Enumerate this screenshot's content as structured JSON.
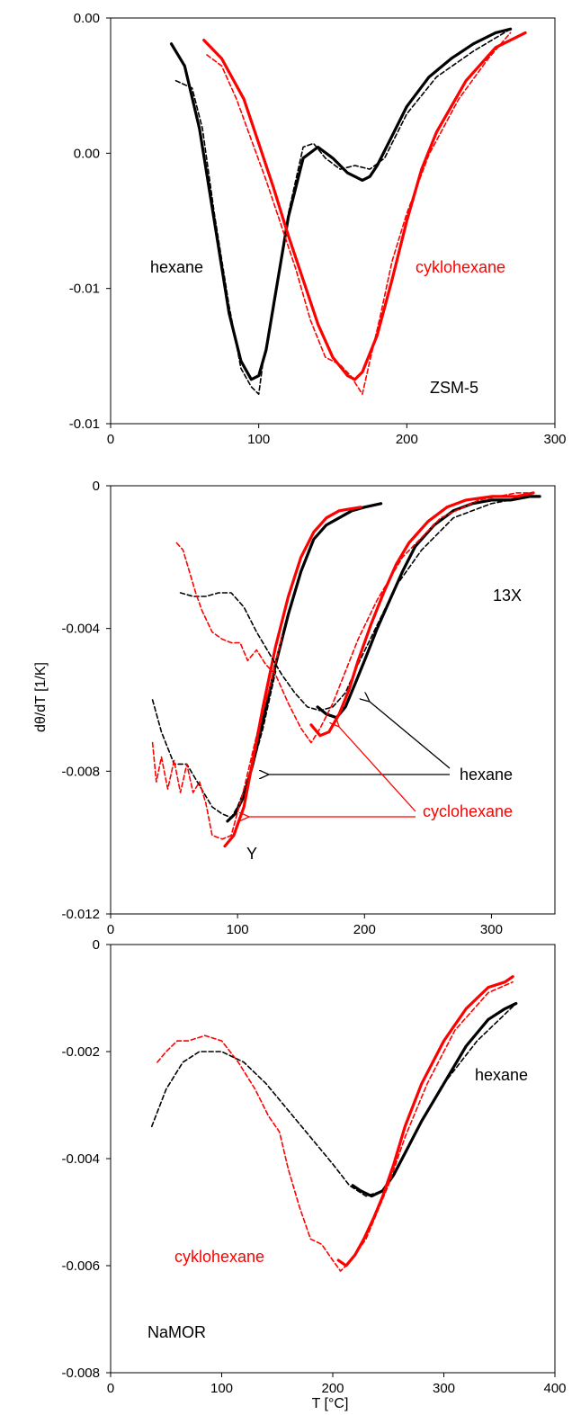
{
  "figure": {
    "ylabel": "dθ/dT [1/K]",
    "xlabel": "T [°C]"
  },
  "chart_data": [
    {
      "type": "line",
      "xlim": [
        0,
        300
      ],
      "x_ticks": [
        "0",
        "100",
        "200",
        "300"
      ],
      "y_ticks": [
        "0.00",
        "0.00",
        "-0.01",
        "-0.01"
      ],
      "ylim": [
        -0.0105,
        0.0005
      ],
      "annotations": [
        {
          "text": "hexane",
          "color": "#000000"
        },
        {
          "text": "cyklohexane",
          "color": "#ff0000"
        },
        {
          "text": "ZSM-5",
          "color": "#000000"
        }
      ],
      "series": [
        {
          "color": "#000000",
          "style": "solid",
          "x": [
            41,
            50,
            60,
            70,
            80,
            88,
            95,
            100,
            105,
            110,
            120,
            130,
            140,
            150,
            160,
            170,
            175,
            180,
            190,
            200,
            215,
            230,
            245,
            260,
            270
          ],
          "y": [
            -0.0002,
            -0.0008,
            -0.0025,
            -0.005,
            -0.0075,
            -0.0088,
            -0.0093,
            -0.0092,
            -0.0085,
            -0.0073,
            -0.0049,
            -0.0033,
            -0.003,
            -0.0033,
            -0.0037,
            -0.0039,
            -0.0038,
            -0.0035,
            -0.0027,
            -0.0019,
            -0.0011,
            -0.0006,
            -0.0002,
            0.0001,
            0.0002
          ]
        },
        {
          "color": "#000000",
          "style": "dashed",
          "x": [
            44,
            55,
            62,
            70,
            80,
            88,
            95,
            100,
            103,
            110,
            120,
            130,
            137,
            145,
            155,
            165,
            175,
            185,
            200,
            220,
            245,
            270
          ],
          "y": [
            -0.0012,
            -0.0014,
            -0.0025,
            -0.0048,
            -0.0073,
            -0.009,
            -0.0095,
            -0.0097,
            -0.0088,
            -0.0074,
            -0.0048,
            -0.003,
            -0.0029,
            -0.0033,
            -0.0036,
            -0.0035,
            -0.0036,
            -0.0033,
            -0.0021,
            -0.0011,
            -0.0004,
            0.0002
          ]
        },
        {
          "color": "#ff0000",
          "style": "solid",
          "x": [
            63,
            75,
            90,
            100,
            110,
            120,
            130,
            140,
            150,
            160,
            165,
            170,
            180,
            190,
            200,
            210,
            220,
            240,
            260,
            280
          ],
          "y": [
            -0.0001,
            -0.0006,
            -0.0017,
            -0.0029,
            -0.0041,
            -0.0054,
            -0.0066,
            -0.0078,
            -0.0087,
            -0.0092,
            -0.0093,
            -0.0091,
            -0.0081,
            -0.0066,
            -0.005,
            -0.0036,
            -0.0026,
            -0.0012,
            -0.0003,
            0.0001
          ]
        },
        {
          "color": "#ff0000",
          "style": "dashed",
          "x": [
            65,
            75,
            85,
            95,
            105,
            115,
            125,
            135,
            145,
            155,
            162,
            170,
            175,
            182,
            190,
            200,
            215,
            235,
            255,
            270
          ],
          "y": [
            -0.0005,
            -0.0008,
            -0.0017,
            -0.0028,
            -0.0039,
            -0.0051,
            -0.0063,
            -0.0077,
            -0.0087,
            -0.0089,
            -0.0092,
            -0.0097,
            -0.0088,
            -0.0076,
            -0.0061,
            -0.0048,
            -0.0032,
            -0.0017,
            -0.0006,
            0.0001
          ]
        }
      ]
    },
    {
      "type": "line",
      "xlim": [
        0,
        350
      ],
      "x_ticks": [
        "0",
        "100",
        "200",
        "300"
      ],
      "y_ticks": [
        "0",
        "-0.004",
        "-0.008",
        "-0.012"
      ],
      "ylim": [
        -0.012,
        0
      ],
      "annotations": [
        {
          "text": "13X",
          "color": "#000000"
        },
        {
          "text": "hexane",
          "color": "#000000"
        },
        {
          "text": "cyclohexane",
          "color": "#ff0000"
        },
        {
          "text": "Y",
          "color": "#000000"
        }
      ],
      "series": [
        {
          "color": "#000000",
          "style": "solid",
          "x": [
            92,
            98,
            105,
            112,
            120,
            130,
            140,
            150,
            160,
            170,
            180,
            190,
            200,
            213
          ],
          "y": [
            -0.0094,
            -0.0092,
            -0.0087,
            -0.0078,
            -0.0066,
            -0.005,
            -0.0036,
            -0.0024,
            -0.0015,
            -0.0011,
            -0.0009,
            -0.0007,
            -0.0006,
            -0.0005
          ]
        },
        {
          "color": "#000000",
          "style": "dashed",
          "x": [
            33,
            40,
            50,
            60,
            70,
            80,
            88,
            95,
            100,
            110,
            120,
            130
          ],
          "y": [
            -0.006,
            -0.0069,
            -0.0078,
            -0.0078,
            -0.0084,
            -0.009,
            -0.0092,
            -0.0093,
            -0.009,
            -0.0081,
            -0.0068,
            -0.0052
          ]
        },
        {
          "color": "#ff0000",
          "style": "solid",
          "x": [
            90,
            97,
            105,
            112,
            120,
            130,
            140,
            150,
            160,
            170,
            180,
            197
          ],
          "y": [
            -0.0101,
            -0.0098,
            -0.009,
            -0.0077,
            -0.0062,
            -0.0045,
            -0.0031,
            -0.002,
            -0.0013,
            -0.0009,
            -0.0007,
            -0.0006
          ]
        },
        {
          "color": "#ff0000",
          "style": "dashed",
          "x": [
            33,
            36,
            40,
            45,
            50,
            55,
            60,
            65,
            70,
            75,
            80,
            88,
            95,
            105,
            115,
            125,
            135
          ],
          "y": [
            -0.0072,
            -0.0083,
            -0.0076,
            -0.0085,
            -0.0077,
            -0.0086,
            -0.0078,
            -0.0086,
            -0.0083,
            -0.0089,
            -0.0098,
            -0.0099,
            -0.0098,
            -0.0085,
            -0.007,
            -0.0057,
            -0.0042
          ]
        },
        {
          "color": "#000000",
          "style": "solid",
          "x": [
            163,
            170,
            178,
            185,
            192,
            200,
            210,
            220,
            230,
            240,
            255,
            270,
            285,
            300,
            315,
            330,
            338
          ],
          "y": [
            -0.0062,
            -0.0064,
            -0.0065,
            -0.0062,
            -0.0056,
            -0.0049,
            -0.004,
            -0.0032,
            -0.0024,
            -0.0017,
            -0.0011,
            -0.0007,
            -0.0005,
            -0.0004,
            -0.0004,
            -0.0003,
            -0.0003
          ]
        },
        {
          "color": "#000000",
          "style": "dashed",
          "x": [
            55,
            65,
            75,
            85,
            95,
            105,
            115,
            125,
            135,
            145,
            155,
            165,
            175,
            185,
            195,
            210,
            225,
            245,
            270,
            300,
            330,
            338
          ],
          "y": [
            -0.003,
            -0.0031,
            -0.0031,
            -0.003,
            -0.003,
            -0.0034,
            -0.0041,
            -0.0047,
            -0.0053,
            -0.0058,
            -0.0062,
            -0.0063,
            -0.0062,
            -0.0058,
            -0.005,
            -0.0039,
            -0.0028,
            -0.0018,
            -0.0009,
            -0.0005,
            -0.0003,
            -0.0003
          ]
        },
        {
          "color": "#ff0000",
          "style": "solid",
          "x": [
            158,
            165,
            172,
            180,
            188,
            195,
            205,
            215,
            225,
            235,
            250,
            265,
            280,
            300,
            320,
            333
          ],
          "y": [
            -0.0067,
            -0.007,
            -0.0069,
            -0.0064,
            -0.0057,
            -0.0049,
            -0.0039,
            -0.003,
            -0.0022,
            -0.0016,
            -0.001,
            -0.0006,
            -0.0004,
            -0.0003,
            -0.0003,
            -0.0002
          ]
        },
        {
          "color": "#ff0000",
          "style": "dashed",
          "x": [
            52,
            57,
            62,
            67,
            72,
            80,
            88,
            95,
            102,
            108,
            115,
            122,
            130,
            140,
            150,
            158,
            165,
            175,
            185,
            195,
            210,
            230,
            260,
            290,
            320,
            333
          ],
          "y": [
            -0.0016,
            -0.0018,
            -0.0024,
            -0.003,
            -0.0035,
            -0.0041,
            -0.0043,
            -0.0044,
            -0.0044,
            -0.0049,
            -0.0046,
            -0.005,
            -0.0053,
            -0.0061,
            -0.0068,
            -0.0072,
            -0.0068,
            -0.0061,
            -0.0052,
            -0.0043,
            -0.0032,
            -0.002,
            -0.0009,
            -0.0004,
            -0.0002,
            -0.0002
          ]
        }
      ]
    },
    {
      "type": "line",
      "xlim": [
        0,
        400
      ],
      "x_ticks": [
        "0",
        "100",
        "200",
        "300",
        "400"
      ],
      "y_ticks": [
        "0",
        "-0.002",
        "-0.004",
        "-0.006",
        "-0.008"
      ],
      "ylim": [
        -0.008,
        0
      ],
      "annotations": [
        {
          "text": "hexane",
          "color": "#000000"
        },
        {
          "text": "cyklohexane",
          "color": "#ff0000"
        },
        {
          "text": "NaMOR",
          "color": "#000000"
        }
      ],
      "series": [
        {
          "color": "#000000",
          "style": "solid",
          "x": [
            218,
            225,
            235,
            245,
            255,
            265,
            280,
            300,
            320,
            340,
            355,
            365
          ],
          "y": [
            -0.0045,
            -0.0046,
            -0.0047,
            -0.0046,
            -0.0043,
            -0.0039,
            -0.0033,
            -0.0026,
            -0.0019,
            -0.0014,
            -0.0012,
            -0.0011
          ]
        },
        {
          "color": "#000000",
          "style": "dashed",
          "x": [
            37,
            50,
            65,
            80,
            100,
            120,
            140,
            160,
            180,
            200,
            215,
            230,
            245,
            260,
            280,
            300,
            330,
            365
          ],
          "y": [
            -0.0034,
            -0.0027,
            -0.0022,
            -0.002,
            -0.002,
            -0.0022,
            -0.0026,
            -0.0031,
            -0.0036,
            -0.0041,
            -0.0045,
            -0.0047,
            -0.0046,
            -0.0041,
            -0.0033,
            -0.0026,
            -0.0018,
            -0.0011
          ]
        },
        {
          "color": "#ff0000",
          "style": "solid",
          "x": [
            205,
            212,
            220,
            228,
            237,
            245,
            255,
            265,
            280,
            300,
            320,
            340,
            355,
            362
          ],
          "y": [
            -0.0059,
            -0.006,
            -0.0058,
            -0.0055,
            -0.0051,
            -0.0047,
            -0.0041,
            -0.0034,
            -0.0026,
            -0.0018,
            -0.0012,
            -0.0008,
            -0.0007,
            -0.0006
          ]
        },
        {
          "color": "#ff0000",
          "style": "dashed",
          "x": [
            42,
            50,
            60,
            70,
            85,
            100,
            115,
            130,
            142,
            152,
            160,
            170,
            180,
            190,
            200,
            207,
            212,
            220,
            230,
            240,
            250,
            265,
            285,
            310,
            340,
            362
          ],
          "y": [
            -0.0022,
            -0.002,
            -0.0018,
            -0.0018,
            -0.0017,
            -0.0018,
            -0.0022,
            -0.0027,
            -0.0032,
            -0.0035,
            -0.0042,
            -0.0049,
            -0.0055,
            -0.0056,
            -0.0059,
            -0.0061,
            -0.006,
            -0.0058,
            -0.0055,
            -0.005,
            -0.0045,
            -0.0036,
            -0.0026,
            -0.0016,
            -0.0009,
            -0.0007
          ]
        }
      ]
    }
  ]
}
